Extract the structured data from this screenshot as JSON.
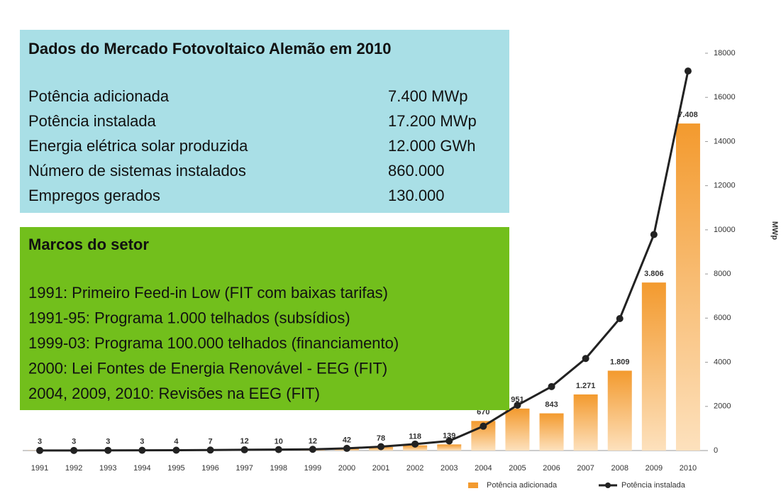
{
  "chart_data": {
    "type": "bar_line",
    "categories": [
      "1991",
      "1992",
      "1993",
      "1994",
      "1995",
      "1996",
      "1997",
      "1998",
      "1999",
      "2000",
      "2001",
      "2002",
      "2003",
      "2004",
      "2005",
      "2006",
      "2007",
      "2008",
      "2009",
      "2010"
    ],
    "series": [
      {
        "name": "Potência adicionada",
        "color": "#f39a2e",
        "axis": "y2",
        "values": [
          3,
          3,
          3,
          3,
          4,
          7,
          12,
          10,
          12,
          42,
          78,
          118,
          139,
          670,
          951,
          843,
          1271,
          1809,
          3806,
          7408
        ],
        "value_labels": [
          "3",
          "3",
          "3",
          "3",
          "4",
          "7",
          "12",
          "10",
          "12",
          "42",
          "78",
          "118",
          "139",
          "670",
          "951",
          "843",
          "1.271",
          "1.809",
          "3.806",
          "7.408"
        ]
      },
      {
        "name": "Potência instalada",
        "color": "#222222",
        "values": [
          3,
          6,
          9,
          12,
          16,
          23,
          35,
          45,
          57,
          99,
          177,
          295,
          434,
          1104,
          2055,
          2898,
          4170,
          5979,
          9785,
          17193
        ]
      }
    ],
    "ylabel": "MWp",
    "ylim": [
      0,
      18000
    ],
    "yticks": [
      0,
      2000,
      4000,
      6000,
      8000,
      10000,
      12000,
      14000,
      16000,
      18000
    ],
    "y2lim": [
      0,
      9000
    ],
    "grid": false,
    "legend": "bottom"
  },
  "info_box": {
    "title": "Dados do Mercado Fotovoltaico Alemão em 2010",
    "rows": [
      [
        "Potência adicionada",
        "7.400 MWp"
      ],
      [
        "Potência instalada",
        "17.200 MWp"
      ],
      [
        "Energia elétrica solar produzida",
        "12.000 GWh"
      ],
      [
        "Número de sistemas instalados",
        "860.000"
      ],
      [
        "Empregos gerados",
        "130.000"
      ]
    ]
  },
  "milestones": {
    "title": "Marcos do setor",
    "items": [
      "1991: Primeiro Feed-in Low (FIT com baixas tarifas)",
      "1991-95: Programa 1.000 telhados (subsídios)",
      "1999-03: Programa 100.000 telhados (financiamento)",
      "2000: Lei Fontes de Energia Renovável - EEG (FIT)",
      "2004, 2009, 2010: Revisões na EEG (FIT)"
    ]
  }
}
